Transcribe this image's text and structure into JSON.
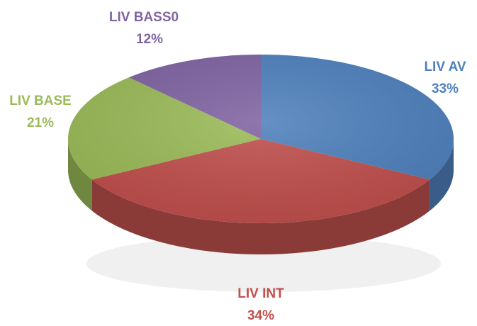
{
  "chart_data": {
    "type": "pie",
    "categories": [
      "LIV AV",
      "LIV INT",
      "LIV BASE",
      "LIV BASS0"
    ],
    "values": [
      33,
      34,
      21,
      12
    ],
    "value_labels": [
      "33%",
      "34%",
      "21%",
      "12%"
    ],
    "colors": [
      "#4f81bd",
      "#c0504d",
      "#9bbb59",
      "#8064a2"
    ]
  }
}
